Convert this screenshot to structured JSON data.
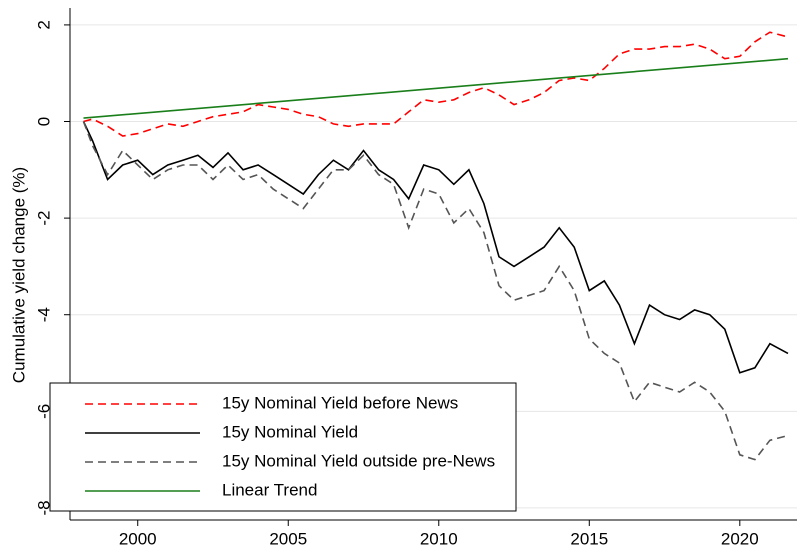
{
  "chart_data": {
    "type": "line",
    "ylabel": "Cumulative yield change (%)",
    "x": [
      1998.2,
      1998.5,
      1999,
      1999.5,
      2000,
      2000.5,
      2001,
      2001.5,
      2002,
      2002.5,
      2003,
      2003.5,
      2004,
      2004.5,
      2005,
      2005.5,
      2006,
      2006.5,
      2007,
      2007.5,
      2008,
      2008.5,
      2009,
      2009.5,
      2010,
      2010.5,
      2011,
      2011.5,
      2012,
      2012.5,
      2013,
      2013.5,
      2014,
      2014.5,
      2015,
      2015.5,
      2016,
      2016.5,
      2017,
      2017.5,
      2018,
      2018.5,
      2019,
      2019.5,
      2020,
      2020.5,
      2021,
      2021.6
    ],
    "series": [
      {
        "name": "15y Nominal Yield before News",
        "color": "#ff0000",
        "dash": true,
        "values": [
          0,
          0.05,
          -0.1,
          -0.3,
          -0.25,
          -0.15,
          -0.05,
          -0.1,
          0,
          0.1,
          0.15,
          0.2,
          0.35,
          0.3,
          0.25,
          0.15,
          0.1,
          -0.05,
          -0.1,
          -0.05,
          -0.05,
          -0.05,
          0.2,
          0.45,
          0.4,
          0.45,
          0.6,
          0.7,
          0.55,
          0.35,
          0.45,
          0.6,
          0.85,
          0.9,
          0.85,
          1.1,
          1.4,
          1.5,
          1.5,
          1.55,
          1.55,
          1.6,
          1.5,
          1.3,
          1.35,
          1.65,
          1.85,
          1.75
        ]
      },
      {
        "name": "15y Nominal Yield",
        "color": "#000000",
        "dash": false,
        "values": [
          0,
          -0.4,
          -1.2,
          -0.9,
          -0.8,
          -1.1,
          -0.9,
          -0.8,
          -0.7,
          -0.95,
          -0.65,
          -1.0,
          -0.9,
          -1.1,
          -1.3,
          -1.5,
          -1.1,
          -0.8,
          -1.0,
          -0.6,
          -1.0,
          -1.2,
          -1.6,
          -0.9,
          -1.0,
          -1.3,
          -1.0,
          -1.7,
          -2.8,
          -3.0,
          -2.8,
          -2.6,
          -2.2,
          -2.6,
          -3.5,
          -3.3,
          -3.8,
          -4.6,
          -3.8,
          -4.0,
          -4.1,
          -3.9,
          -4.0,
          -4.3,
          -5.2,
          -5.1,
          -4.6,
          -4.8
        ]
      },
      {
        "name": "15y Nominal Yield outside pre-News",
        "color": "#555555",
        "dash": true,
        "values": [
          0,
          -0.5,
          -1.1,
          -0.6,
          -0.9,
          -1.2,
          -1.0,
          -0.9,
          -0.9,
          -1.2,
          -0.9,
          -1.2,
          -1.1,
          -1.4,
          -1.6,
          -1.8,
          -1.4,
          -1.0,
          -1.0,
          -0.7,
          -1.1,
          -1.3,
          -2.2,
          -1.4,
          -1.5,
          -2.1,
          -1.8,
          -2.3,
          -3.4,
          -3.7,
          -3.6,
          -3.5,
          -3.0,
          -3.5,
          -4.5,
          -4.8,
          -5.0,
          -5.8,
          -5.4,
          -5.5,
          -5.6,
          -5.4,
          -5.6,
          -6.0,
          -6.9,
          -7.0,
          -6.6,
          -6.5
        ]
      },
      {
        "name": "Linear Trend",
        "color": "#1a7f1a",
        "dash": false,
        "x": [
          1998.2,
          2021.6
        ],
        "values": [
          0.07,
          1.3
        ]
      }
    ],
    "xlim": [
      1997.75,
      2021.9
    ],
    "ylim": [
      -8.25,
      2.35
    ],
    "xticks": [
      2000,
      2005,
      2010,
      2015,
      2020
    ],
    "yticks": [
      -8,
      -6,
      -4,
      -2,
      0,
      2
    ],
    "grid": true,
    "legend": "lower left"
  }
}
